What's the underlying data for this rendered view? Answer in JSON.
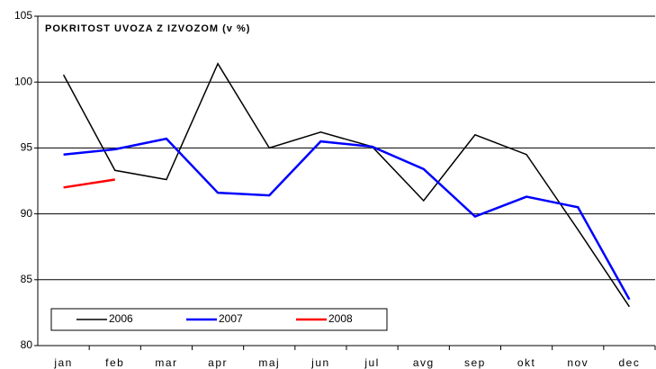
{
  "chart_data": {
    "type": "line",
    "title": "POKRITOST UVOZA Z IZVOZOM (v %)",
    "categories": [
      "jan",
      "feb",
      "mar",
      "apr",
      "maj",
      "jun",
      "jul",
      "avg",
      "sep",
      "okt",
      "nov",
      "dec"
    ],
    "series": [
      {
        "name": "2006",
        "color": "#000000",
        "values": [
          100.55,
          93.3,
          92.6,
          101.4,
          95.0,
          96.2,
          95.1,
          91.0,
          96.0,
          94.5,
          88.8,
          82.95
        ]
      },
      {
        "name": "2007",
        "color": "#0000ff",
        "values": [
          94.5,
          94.9,
          95.7,
          91.6,
          91.4,
          95.5,
          95.1,
          93.4,
          89.8,
          91.3,
          90.5,
          83.5
        ]
      },
      {
        "name": "2008",
        "color": "#ff0000",
        "values": [
          92.0,
          92.6,
          null,
          null,
          null,
          null,
          null,
          null,
          null,
          null,
          null,
          null
        ]
      }
    ],
    "ylim": [
      80,
      105
    ],
    "yticks": [
      80,
      85,
      90,
      95,
      100,
      105
    ],
    "grid": true,
    "legend": "bottom-left"
  }
}
